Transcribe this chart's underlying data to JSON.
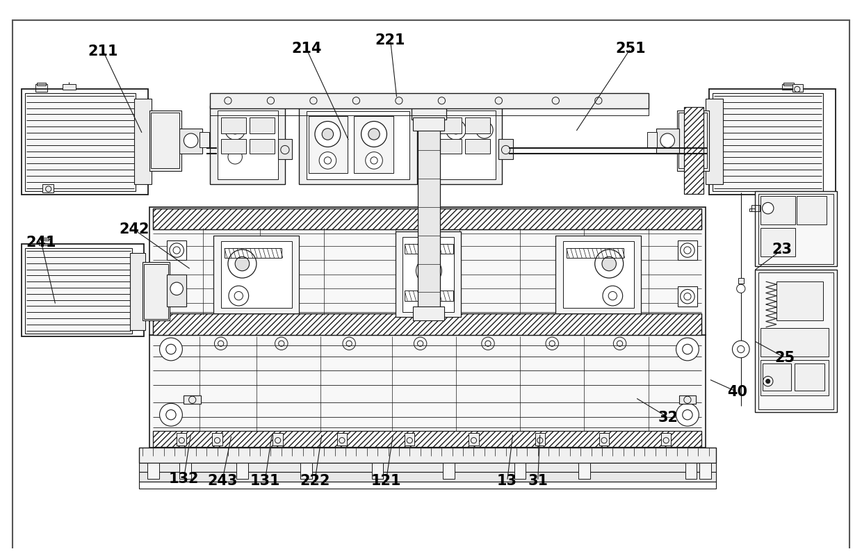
{
  "bg_color": "#ffffff",
  "lc": "#1a1a1a",
  "figsize": [
    12.4,
    8.0
  ],
  "dpi": 100,
  "annotations": [
    [
      "211",
      145,
      62,
      200,
      178
    ],
    [
      "214",
      430,
      58,
      490,
      188
    ],
    [
      "221",
      548,
      46,
      557,
      128
    ],
    [
      "251",
      885,
      58,
      808,
      175
    ],
    [
      "241",
      58,
      330,
      78,
      418
    ],
    [
      "242",
      188,
      312,
      268,
      368
    ],
    [
      "23",
      1098,
      340,
      1058,
      370
    ],
    [
      "25",
      1102,
      492,
      1058,
      468
    ],
    [
      "40",
      1035,
      540,
      995,
      522
    ],
    [
      "32",
      938,
      576,
      892,
      548
    ],
    [
      "132",
      258,
      662,
      268,
      598
    ],
    [
      "243",
      312,
      665,
      325,
      600
    ],
    [
      "131",
      372,
      665,
      382,
      598
    ],
    [
      "222",
      442,
      665,
      452,
      598
    ],
    [
      "121",
      542,
      665,
      552,
      598
    ],
    [
      "13",
      712,
      665,
      720,
      598
    ],
    [
      "31",
      755,
      665,
      758,
      598
    ]
  ]
}
